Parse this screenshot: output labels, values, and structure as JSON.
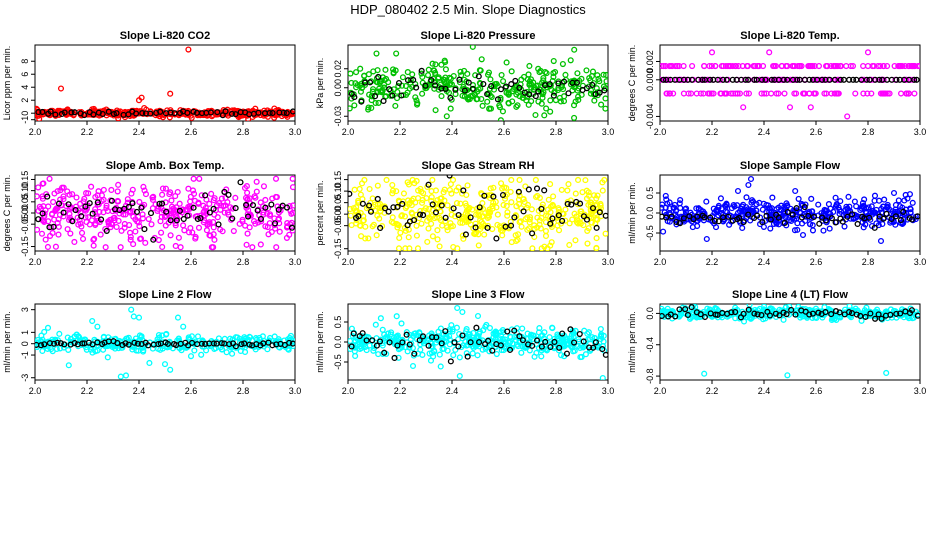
{
  "figure": {
    "title": "HDP_080402  2.5 Min. Slope Diagnostics"
  },
  "chart_data": [
    {
      "id": "co2",
      "type": "scatter",
      "title": "Slope Li-820 CO2",
      "ylabel": "Licor ppm per min.",
      "color": "#ff0000",
      "xlim": [
        2.0,
        3.0
      ],
      "ylim": [
        -1.2,
        10.5
      ],
      "xticks": [
        "2.0",
        "2.2",
        "2.4",
        "2.6",
        "2.8",
        "3.0"
      ],
      "yticks": [
        {
          "v": -1,
          "label": "-1"
        },
        {
          "v": 0,
          "label": "0"
        },
        {
          "v": 2,
          "label": "2"
        },
        {
          "v": 4,
          "label": "4"
        },
        {
          "v": 6,
          "label": "6"
        },
        {
          "v": 8,
          "label": "8"
        }
      ],
      "gen": {
        "n": 380,
        "spread": 0.25,
        "outliers": [
          [
            2.1,
            3.8
          ],
          [
            2.22,
            0.6
          ],
          [
            2.4,
            2.0
          ],
          [
            2.41,
            2.4
          ],
          [
            2.42,
            0.8
          ],
          [
            2.52,
            3.0
          ],
          [
            2.59,
            9.8
          ],
          [
            2.32,
            -0.8
          ],
          [
            2.82,
            -0.9
          ],
          [
            2.92,
            -0.7
          ]
        ]
      },
      "black": {
        "n": 55,
        "spread": 0.12,
        "center": 0.0
      }
    },
    {
      "id": "pressure",
      "type": "scatter",
      "title": "Slope Li-820 Pressure",
      "ylabel": "kPa per min.",
      "color": "#00c000",
      "xlim": [
        2.0,
        3.0
      ],
      "ylim": [
        -0.035,
        0.045
      ],
      "xticks": [
        "2.0",
        "2.2",
        "2.4",
        "2.6",
        "2.8",
        "3.0"
      ],
      "yticks": [
        {
          "v": -0.03,
          "label": "-0.03"
        },
        {
          "v": 0.0,
          "label": "0.00"
        },
        {
          "v": 0.02,
          "label": "0.02"
        }
      ],
      "gen": {
        "n": 360,
        "spread": 0.012,
        "outliers": [
          [
            2.38,
            -0.03
          ],
          [
            2.48,
            0.043
          ],
          [
            2.55,
            -0.022
          ],
          [
            2.87,
            0.04
          ],
          [
            2.99,
            -0.022
          ]
        ]
      },
      "black": {
        "n": 55,
        "spread": 0.007,
        "center": 0.0
      }
    },
    {
      "id": "temp",
      "type": "scatter",
      "title": "Slope Li-820 Temp.",
      "ylabel": "degrees C per min.",
      "color": "#ff00ff",
      "xlim": [
        2.0,
        3.0
      ],
      "ylim": [
        -0.0045,
        0.0038
      ],
      "xticks": [
        "2.0",
        "2.2",
        "2.4",
        "2.6",
        "2.8",
        "3.0"
      ],
      "yticks": [
        {
          "v": -0.004,
          "label": "-0.004"
        },
        {
          "v": 0.0,
          "label": "0.000"
        },
        {
          "v": 0.002,
          "label": "0.002"
        }
      ],
      "gen": {
        "levels": [
          -0.0015,
          0.0,
          0.0015
        ],
        "n": 260,
        "outliers": [
          [
            2.2,
            0.003
          ],
          [
            2.32,
            -0.003
          ],
          [
            2.42,
            0.003
          ],
          [
            2.5,
            -0.003
          ],
          [
            2.58,
            -0.003
          ],
          [
            2.72,
            -0.004
          ],
          [
            2.8,
            0.003
          ]
        ]
      },
      "black": {
        "n": 60,
        "center": 0.0,
        "spread": 0.0
      }
    },
    {
      "id": "boxtemp",
      "type": "scatter",
      "title": "Slope Amb. Box Temp.",
      "ylabel": "degrees C per min.",
      "color": "#ff00ff",
      "xlim": [
        2.0,
        3.0
      ],
      "ylim": [
        -0.17,
        0.17
      ],
      "xticks": [
        "2.0",
        "2.2",
        "2.4",
        "2.6",
        "2.8",
        "3.0"
      ],
      "yticks": [
        {
          "v": -0.15,
          "label": "-0.15"
        },
        {
          "v": -0.05,
          "label": "-0.05"
        },
        {
          "v": 0.0,
          "label": "0.00"
        },
        {
          "v": 0.05,
          "label": "0.05"
        },
        {
          "v": 0.1,
          "label": "0.10"
        },
        {
          "v": 0.15,
          "label": "0.15"
        }
      ],
      "gen": {
        "n": 420,
        "spread": 0.07,
        "outliers": []
      },
      "black": {
        "n": 60,
        "spread": 0.05,
        "center": 0.0
      }
    },
    {
      "id": "rh",
      "type": "scatter",
      "title": "Slope Gas Stream RH",
      "ylabel": "percent per min.",
      "color": "#ffff00",
      "xlim": [
        2.0,
        3.0
      ],
      "ylim": [
        -0.16,
        0.17
      ],
      "xticks": [
        "2.0",
        "2.2",
        "2.4",
        "2.6",
        "2.8",
        "3.0"
      ],
      "yticks": [
        {
          "v": -0.15,
          "label": "-0.15"
        },
        {
          "v": -0.05,
          "label": "-0.05"
        },
        {
          "v": 0.0,
          "label": "0.00"
        },
        {
          "v": 0.05,
          "label": "0.05"
        },
        {
          "v": 0.1,
          "label": "0.10"
        },
        {
          "v": 0.15,
          "label": "0.15"
        }
      ],
      "gen": {
        "n": 440,
        "spread": 0.07,
        "outliers": []
      },
      "black": {
        "n": 60,
        "spread": 0.06,
        "center": 0.0
      }
    },
    {
      "id": "sampleflow",
      "type": "scatter",
      "title": "Slope Sample Flow",
      "ylabel": "ml/min per min.",
      "color": "#0000ff",
      "xlim": [
        2.0,
        3.0
      ],
      "ylim": [
        -0.95,
        0.95
      ],
      "xticks": [
        "2.0",
        "2.2",
        "2.4",
        "2.6",
        "2.8",
        "3.0"
      ],
      "yticks": [
        {
          "v": -0.5,
          "label": "-0.5"
        },
        {
          "v": 0.0,
          "label": "0.0"
        },
        {
          "v": 0.5,
          "label": "0.5"
        }
      ],
      "gen": {
        "n": 400,
        "spread": 0.18,
        "outliers": [
          [
            2.35,
            0.85
          ],
          [
            2.34,
            0.7
          ],
          [
            2.3,
            0.55
          ],
          [
            2.52,
            0.55
          ],
          [
            2.18,
            -0.65
          ],
          [
            2.55,
            -0.55
          ],
          [
            2.85,
            -0.7
          ],
          [
            2.9,
            0.5
          ]
        ]
      },
      "black": {
        "n": 60,
        "spread": 0.1,
        "center": -0.1
      }
    },
    {
      "id": "line2",
      "type": "scatter",
      "title": "Slope Line 2 Flow",
      "ylabel": "ml/min per min.",
      "color": "#00ffff",
      "xlim": [
        2.0,
        3.0
      ],
      "ylim": [
        -3.2,
        3.5
      ],
      "xticks": [
        "2.0",
        "2.2",
        "2.4",
        "2.6",
        "2.8",
        "3.0"
      ],
      "yticks": [
        {
          "v": -3,
          "label": "-3"
        },
        {
          "v": -1,
          "label": "-1"
        },
        {
          "v": 0,
          "label": "0"
        },
        {
          "v": 1,
          "label": "1"
        },
        {
          "v": 3,
          "label": "3"
        }
      ],
      "gen": {
        "n": 320,
        "spread": 0.35,
        "outliers": [
          [
            2.05,
            1.4
          ],
          [
            2.13,
            -1.9
          ],
          [
            2.22,
            2.0
          ],
          [
            2.24,
            1.5
          ],
          [
            2.28,
            -1.2
          ],
          [
            2.35,
            -2.8
          ],
          [
            2.37,
            3.0
          ],
          [
            2.38,
            2.4
          ],
          [
            2.4,
            2.3
          ],
          [
            2.44,
            -1.7
          ],
          [
            2.5,
            -1.8
          ],
          [
            2.55,
            2.3
          ],
          [
            2.57,
            1.5
          ],
          [
            2.6,
            -1.1
          ],
          [
            2.33,
            -2.9
          ],
          [
            2.52,
            -2.3
          ]
        ]
      },
      "black": {
        "n": 65,
        "spread": 0.08,
        "center": 0.0
      }
    },
    {
      "id": "line3",
      "type": "scatter",
      "title": "Slope Line 3 Flow",
      "ylabel": "ml/min per min.",
      "color": "#00ffff",
      "xlim": [
        2.0,
        3.0
      ],
      "ylim": [
        -0.95,
        0.95
      ],
      "xticks": [
        "2.0",
        "2.2",
        "2.4",
        "2.6",
        "2.8",
        "3.0"
      ],
      "yticks": [
        {
          "v": -0.5,
          "label": "-0.5"
        },
        {
          "v": 0.0,
          "label": "0.0"
        },
        {
          "v": 0.5,
          "label": "0.5"
        }
      ],
      "gen": {
        "n": 420,
        "spread": 0.18,
        "outliers": [
          [
            2.42,
            0.85
          ],
          [
            2.44,
            0.75
          ],
          [
            2.25,
            -0.6
          ],
          [
            2.43,
            -0.85
          ],
          [
            2.98,
            -0.9
          ],
          [
            2.5,
            0.65
          ]
        ]
      },
      "black": {
        "n": 60,
        "spread": 0.2,
        "center": 0.0
      }
    },
    {
      "id": "line4",
      "type": "scatter",
      "title": "Slope Line 4 (LT) Flow",
      "ylabel": "ml/min per min.",
      "color": "#00ffff",
      "xlim": [
        2.0,
        3.0
      ],
      "ylim": [
        -0.85,
        0.12
      ],
      "xticks": [
        "2.0",
        "2.2",
        "2.4",
        "2.6",
        "2.8",
        "3.0"
      ],
      "yticks": [
        {
          "v": -0.8,
          "label": "-0.8"
        },
        {
          "v": -0.4,
          "label": "-0.4"
        },
        {
          "v": 0.0,
          "label": "0.0"
        }
      ],
      "gen": {
        "n": 380,
        "spread": 0.035,
        "outliers": [
          [
            2.17,
            -0.77
          ],
          [
            2.49,
            -0.79
          ],
          [
            2.87,
            -0.76
          ]
        ]
      },
      "black": {
        "n": 60,
        "spread": 0.03,
        "center": 0.0
      }
    }
  ]
}
